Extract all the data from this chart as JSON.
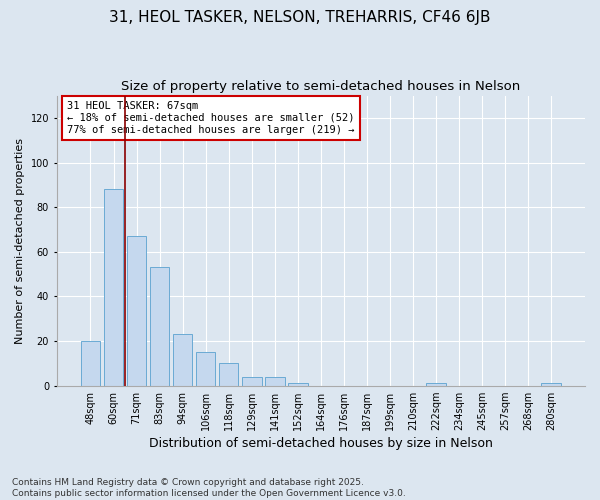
{
  "title1": "31, HEOL TASKER, NELSON, TREHARRIS, CF46 6JB",
  "title2": "Size of property relative to semi-detached houses in Nelson",
  "xlabel": "Distribution of semi-detached houses by size in Nelson",
  "ylabel": "Number of semi-detached properties",
  "categories": [
    "48sqm",
    "60sqm",
    "71sqm",
    "83sqm",
    "94sqm",
    "106sqm",
    "118sqm",
    "129sqm",
    "141sqm",
    "152sqm",
    "164sqm",
    "176sqm",
    "187sqm",
    "199sqm",
    "210sqm",
    "222sqm",
    "234sqm",
    "245sqm",
    "257sqm",
    "268sqm",
    "280sqm"
  ],
  "values": [
    20,
    88,
    67,
    53,
    23,
    15,
    10,
    4,
    4,
    1,
    0,
    0,
    0,
    0,
    0,
    1,
    0,
    0,
    0,
    0,
    1
  ],
  "bar_color": "#c5d8ee",
  "bar_edge_color": "#6aaad4",
  "vline_x_idx": 1.5,
  "vline_color": "#8b0000",
  "annotation_text": "31 HEOL TASKER: 67sqm\n← 18% of semi-detached houses are smaller (52)\n77% of semi-detached houses are larger (219) →",
  "annotation_box_color": "white",
  "annotation_box_edge_color": "#cc0000",
  "ylim_max": 130,
  "yticks": [
    0,
    20,
    40,
    60,
    80,
    100,
    120
  ],
  "background_color": "#dce6f0",
  "grid_color": "white",
  "footer_text": "Contains HM Land Registry data © Crown copyright and database right 2025.\nContains public sector information licensed under the Open Government Licence v3.0.",
  "title1_fontsize": 11,
  "title2_fontsize": 9.5,
  "tick_fontsize": 7,
  "ylabel_fontsize": 8,
  "xlabel_fontsize": 9,
  "annotation_fontsize": 7.5,
  "footer_fontsize": 6.5
}
